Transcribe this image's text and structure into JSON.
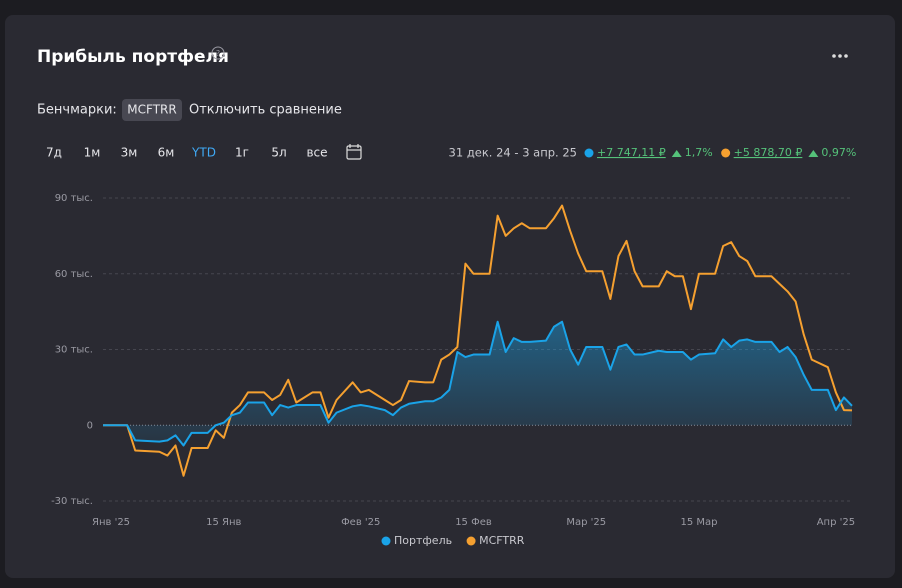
{
  "header": {
    "title": "Прибыль портфеля",
    "help": "?"
  },
  "benchmarks": {
    "label": "Бенчмарки:",
    "chip": "MCFTRR",
    "disable": "Отключить сравнение"
  },
  "periods": {
    "items": [
      "7д",
      "1м",
      "3м",
      "6м",
      "YTD",
      "1г",
      "5л",
      "все"
    ],
    "active_period": 4
  },
  "summary": {
    "range": "31 дек. 24 - 3 апр. 25",
    "items": [
      {
        "amount": "+7 747,11 ₽",
        "percent": "1,7%",
        "color": "#1aa3e8"
      },
      {
        "amount": "+5 878,70 ₽",
        "percent": "0,97%",
        "color": "#f5a030"
      }
    ]
  },
  "chart_data": {
    "type": "line",
    "x": [
      "2024-12-31",
      "2025-01-03",
      "2025-01-04",
      "2025-01-07",
      "2025-01-08",
      "2025-01-09",
      "2025-01-10",
      "2025-01-11",
      "2025-01-13",
      "2025-01-14",
      "2025-01-15",
      "2025-01-16",
      "2025-01-17",
      "2025-01-18",
      "2025-01-20",
      "2025-01-21",
      "2025-01-22",
      "2025-01-23",
      "2025-01-24",
      "2025-01-26",
      "2025-01-27",
      "2025-01-28",
      "2025-01-29",
      "2025-01-31",
      "2025-02-01",
      "2025-02-02",
      "2025-02-04",
      "2025-02-05",
      "2025-02-06",
      "2025-02-07",
      "2025-02-09",
      "2025-02-10",
      "2025-02-11",
      "2025-02-12",
      "2025-02-13",
      "2025-02-14",
      "2025-02-15",
      "2025-02-17",
      "2025-02-18",
      "2025-02-19",
      "2025-02-20",
      "2025-02-21",
      "2025-02-22",
      "2025-02-24",
      "2025-02-25",
      "2025-02-26",
      "2025-02-27",
      "2025-02-28",
      "2025-03-01",
      "2025-03-03",
      "2025-03-04",
      "2025-03-05",
      "2025-03-06",
      "2025-03-07",
      "2025-03-08",
      "2025-03-10",
      "2025-03-11",
      "2025-03-12",
      "2025-03-13",
      "2025-03-14",
      "2025-03-15",
      "2025-03-17",
      "2025-03-18",
      "2025-03-19",
      "2025-03-20",
      "2025-03-21",
      "2025-03-22",
      "2025-03-24",
      "2025-03-25",
      "2025-03-26",
      "2025-03-27",
      "2025-03-28",
      "2025-03-29",
      "2025-03-31",
      "2025-04-01",
      "2025-04-02",
      "2025-04-03"
    ],
    "series": [
      {
        "name": "Портфель",
        "color": "#1aa3e8",
        "area": true,
        "values": [
          0,
          0,
          -6,
          -6.5,
          -6,
          -4,
          -8,
          -3,
          -3,
          0,
          1,
          4,
          5,
          9,
          9,
          4,
          8,
          7,
          8,
          8,
          8,
          1,
          5,
          7.5,
          8,
          7.5,
          6,
          4,
          7,
          8.5,
          9.5,
          9.5,
          11,
          14,
          29,
          27,
          28,
          28,
          41,
          29,
          34.5,
          33,
          33,
          33.5,
          39,
          41,
          30,
          24,
          31,
          31,
          22,
          31,
          32,
          28,
          28,
          29.5,
          29,
          29,
          29,
          26,
          28,
          28.5,
          34,
          31,
          33.5,
          34,
          33,
          33,
          29,
          31,
          27,
          20,
          14,
          14,
          6,
          11,
          7.7
        ]
      },
      {
        "name": "MCFTRR",
        "color": "#f5a030",
        "area": false,
        "values": [
          0,
          0,
          -10,
          -10.5,
          -12,
          -8,
          -20,
          -9,
          -9,
          -2,
          -5,
          5,
          8,
          13,
          13,
          10,
          12,
          18,
          9,
          13,
          13,
          3,
          10,
          17,
          13,
          14,
          10,
          8,
          10,
          17.5,
          17,
          17,
          26,
          28,
          31,
          64,
          60,
          60,
          83,
          75,
          78,
          80,
          78,
          78,
          82,
          87,
          77,
          68,
          61,
          61,
          50,
          67,
          73,
          61,
          55,
          55,
          61,
          59,
          59,
          46,
          60,
          60,
          71,
          72.5,
          67,
          65,
          59,
          59,
          56,
          53,
          49,
          36,
          26,
          23,
          13,
          6,
          5.9
        ]
      }
    ],
    "xlim": [
      "2024-12-31",
      "2025-04-03"
    ],
    "xticks": [
      {
        "value": "2025-01-01",
        "label": "Янв '25"
      },
      {
        "value": "2025-01-15",
        "label": "15 Янв"
      },
      {
        "value": "2025-02-01",
        "label": "Фев '25"
      },
      {
        "value": "2025-02-15",
        "label": "15 Фев"
      },
      {
        "value": "2025-03-01",
        "label": "Мар '25"
      },
      {
        "value": "2025-03-15",
        "label": "15 Мар"
      },
      {
        "value": "2025-04-01",
        "label": "Апр '25"
      }
    ],
    "ylim": [
      -30,
      90
    ],
    "yticks": [
      {
        "value": -30,
        "label": "-30 тыс."
      },
      0,
      {
        "value": 30,
        "label": "30 тыс."
      },
      {
        "value": 60,
        "label": "60 тыс."
      },
      {
        "value": 90,
        "label": "90 тыс."
      }
    ],
    "grid": true
  }
}
